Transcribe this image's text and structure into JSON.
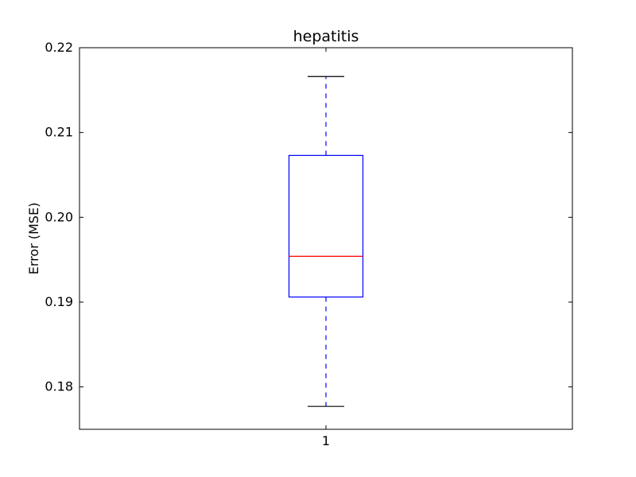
{
  "chart_data": {
    "type": "box",
    "title": "hepatitis",
    "xlabel": "",
    "ylabel": "Error (MSE)",
    "ylim": [
      0.175,
      0.22
    ],
    "yticks": [
      0.18,
      0.19,
      0.2,
      0.21,
      0.22
    ],
    "ytick_labels": [
      "0.18",
      "0.19",
      "0.20",
      "0.21",
      "0.22"
    ],
    "categories": [
      "1"
    ],
    "boxes": [
      {
        "label": "1",
        "whisker_low": 0.1777,
        "q1": 0.1906,
        "median": 0.1954,
        "q3": 0.2073,
        "whisker_high": 0.2166
      }
    ],
    "colors": {
      "box": "#0000ff",
      "median": "#ff0000",
      "whisker": "#0000ff",
      "cap": "#000000"
    },
    "grid": false
  }
}
